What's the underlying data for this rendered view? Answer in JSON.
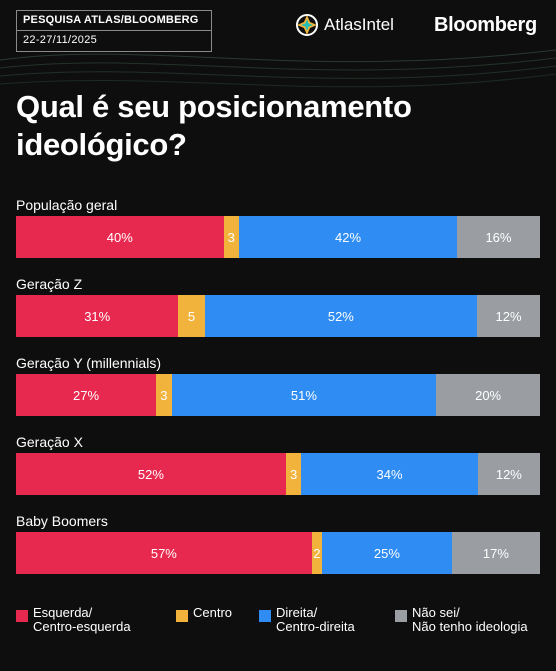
{
  "header": {
    "survey_label": "PESQUISA ATLAS/BLOOMBERG",
    "date_range": "22-27/11/2025",
    "brand_atlas": "AtlasIntel",
    "brand_bloomberg": "Bloomberg"
  },
  "colors": {
    "esquerda": "#e8294f",
    "centro": "#f2b33d",
    "direita": "#2f8cf2",
    "nao_sei": "#9a9ea3"
  },
  "chart_data": {
    "type": "bar",
    "orientation": "horizontal-stacked-100",
    "title": "Qual é seu posicionamento ideológico?",
    "categories": [
      "População geral",
      "Geração Z",
      "Geração Y (millennials)",
      "Geração X",
      "Baby Boomers"
    ],
    "series": [
      {
        "name": "Esquerda/\nCentro-esquerda",
        "key": "esquerda",
        "values": [
          40,
          31,
          27,
          52,
          57
        ],
        "labels": [
          "40%",
          "31%",
          "27%",
          "52%",
          "57%"
        ]
      },
      {
        "name": "Centro",
        "key": "centro",
        "values": [
          3,
          5,
          3,
          3,
          2
        ],
        "labels": [
          "3",
          "5",
          "3",
          "3",
          "2"
        ]
      },
      {
        "name": "Direita/\nCentro-direita",
        "key": "direita",
        "values": [
          42,
          52,
          51,
          34,
          25
        ],
        "labels": [
          "42%",
          "52%",
          "51%",
          "34%",
          "25%"
        ]
      },
      {
        "name": "Não sei/\nNão tenho ideologia",
        "key": "nao_sei",
        "values": [
          16,
          12,
          20,
          12,
          17
        ],
        "labels": [
          "16%",
          "12%",
          "20%",
          "12%",
          "17%"
        ]
      }
    ],
    "legend": "bottom"
  }
}
